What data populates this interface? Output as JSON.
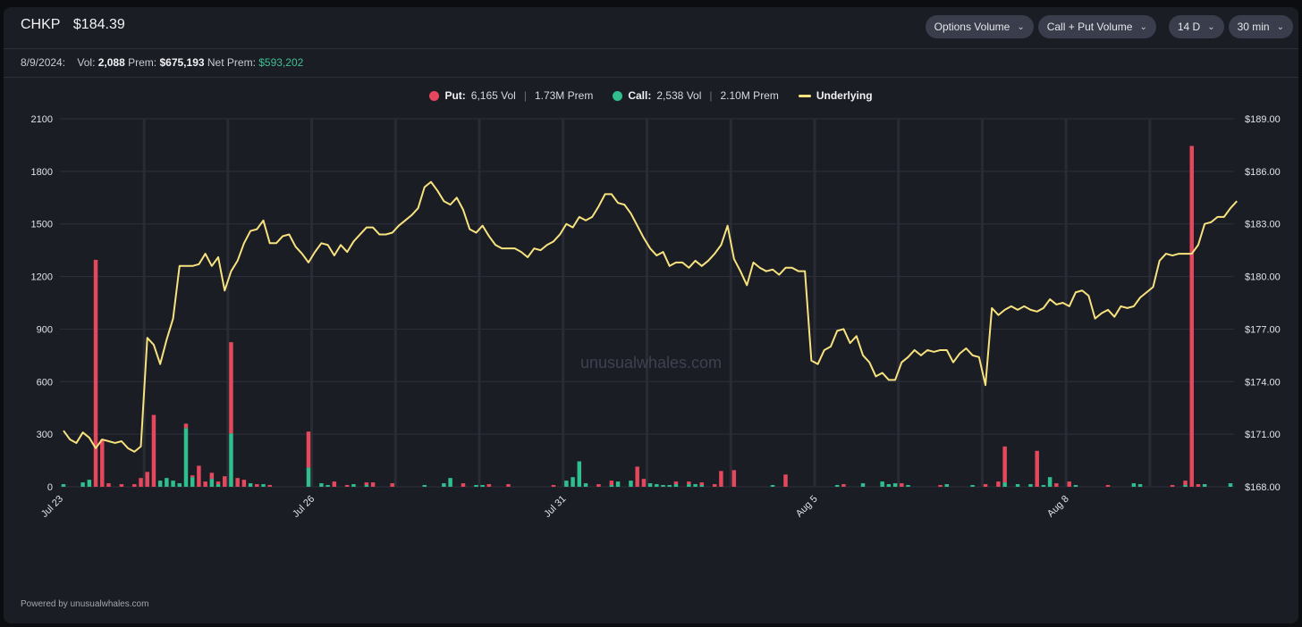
{
  "header": {
    "symbol": "CHKP",
    "price": "$184.39",
    "controls": [
      {
        "label": "Options Volume"
      },
      {
        "label": "Call + Put Volume"
      },
      {
        "label": "14 D"
      },
      {
        "label": "30 min"
      }
    ]
  },
  "stats": {
    "date": "8/9/2024:",
    "vol_label": "Vol:",
    "vol": "2,088",
    "prem_label": "Prem:",
    "prem": "$675,193",
    "net_label": "Net Prem:",
    "net_prem": "$593,202"
  },
  "legend": {
    "put_label": "Put:",
    "put_vol": "6,165 Vol",
    "put_prem": "1.73M Prem",
    "call_label": "Call:",
    "call_vol": "2,538 Vol",
    "call_prem": "2.10M Prem",
    "underlying_label": "Underlying"
  },
  "watermark": "unusualwhales.com",
  "footer": "Powered by unusualwhales.com",
  "colors": {
    "put": "#e5475c",
    "call": "#2fbf8e",
    "underlying": "#f7e27e"
  },
  "chart_data": {
    "type": "bar",
    "y_left": {
      "ticks": [
        0,
        300,
        600,
        900,
        1200,
        1500,
        1800,
        2100
      ],
      "range": [
        0,
        2100
      ]
    },
    "y_right": {
      "ticks": [
        "$168.00",
        "$171.00",
        "$174.00",
        "$177.00",
        "$180.00",
        "$183.00",
        "$186.00",
        "$189.00"
      ],
      "range": [
        168,
        189
      ]
    },
    "x_ticks": [
      {
        "label": "Jul 23",
        "index": 0
      },
      {
        "label": "Jul 26",
        "index": 39
      },
      {
        "label": "Jul 31",
        "index": 78
      },
      {
        "label": "Aug 5",
        "index": 117
      },
      {
        "label": "Aug 8",
        "index": 156
      }
    ],
    "n_slots": 182,
    "day_boundaries": [
      13,
      26,
      39,
      52,
      65,
      78,
      91,
      104,
      117,
      130,
      143,
      156,
      169
    ],
    "series": [
      {
        "name": "Put",
        "bars": [
          [
            5,
            1295
          ],
          [
            6,
            270
          ],
          [
            7,
            20
          ],
          [
            9,
            15
          ],
          [
            11,
            15
          ],
          [
            12,
            50
          ],
          [
            13,
            85
          ],
          [
            14,
            410
          ],
          [
            19,
            25
          ],
          [
            20,
            10
          ],
          [
            21,
            120
          ],
          [
            22,
            30
          ],
          [
            23,
            35
          ],
          [
            24,
            15
          ],
          [
            25,
            60
          ],
          [
            26,
            520
          ],
          [
            27,
            50
          ],
          [
            28,
            40
          ],
          [
            30,
            15
          ],
          [
            32,
            10
          ],
          [
            38,
            205
          ],
          [
            42,
            30
          ],
          [
            44,
            10
          ],
          [
            47,
            15
          ],
          [
            48,
            25
          ],
          [
            51,
            20
          ],
          [
            62,
            20
          ],
          [
            66,
            15
          ],
          [
            69,
            15
          ],
          [
            76,
            10
          ],
          [
            83,
            15
          ],
          [
            85,
            25
          ],
          [
            89,
            115
          ],
          [
            90,
            45
          ],
          [
            95,
            15
          ],
          [
            97,
            15
          ],
          [
            99,
            15
          ],
          [
            101,
            15
          ],
          [
            102,
            90
          ],
          [
            104,
            95
          ],
          [
            112,
            70
          ],
          [
            121,
            15
          ],
          [
            130,
            20
          ],
          [
            136,
            10
          ],
          [
            143,
            15
          ],
          [
            145,
            30
          ],
          [
            146,
            205
          ],
          [
            151,
            205
          ],
          [
            154,
            20
          ],
          [
            156,
            30
          ],
          [
            162,
            10
          ],
          [
            172,
            10
          ],
          [
            174,
            25
          ],
          [
            175,
            1945
          ],
          [
            176,
            15
          ]
        ]
      },
      {
        "name": "Call",
        "bars": [
          [
            0,
            15
          ],
          [
            3,
            25
          ],
          [
            4,
            40
          ],
          [
            15,
            35
          ],
          [
            16,
            50
          ],
          [
            17,
            35
          ],
          [
            18,
            20
          ],
          [
            19,
            335
          ],
          [
            20,
            55
          ],
          [
            23,
            45
          ],
          [
            24,
            15
          ],
          [
            26,
            305
          ],
          [
            29,
            20
          ],
          [
            31,
            15
          ],
          [
            38,
            110
          ],
          [
            40,
            20
          ],
          [
            41,
            10
          ],
          [
            45,
            15
          ],
          [
            47,
            10
          ],
          [
            56,
            10
          ],
          [
            59,
            20
          ],
          [
            60,
            50
          ],
          [
            64,
            10
          ],
          [
            65,
            10
          ],
          [
            78,
            35
          ],
          [
            79,
            55
          ],
          [
            80,
            145
          ],
          [
            81,
            20
          ],
          [
            85,
            10
          ],
          [
            86,
            30
          ],
          [
            88,
            35
          ],
          [
            91,
            20
          ],
          [
            92,
            15
          ],
          [
            93,
            10
          ],
          [
            94,
            10
          ],
          [
            95,
            15
          ],
          [
            97,
            15
          ],
          [
            98,
            15
          ],
          [
            99,
            10
          ],
          [
            110,
            10
          ],
          [
            120,
            10
          ],
          [
            124,
            20
          ],
          [
            127,
            30
          ],
          [
            128,
            15
          ],
          [
            129,
            20
          ],
          [
            131,
            10
          ],
          [
            137,
            15
          ],
          [
            141,
            10
          ],
          [
            146,
            25
          ],
          [
            148,
            15
          ],
          [
            150,
            15
          ],
          [
            152,
            10
          ],
          [
            153,
            55
          ],
          [
            157,
            10
          ],
          [
            166,
            20
          ],
          [
            167,
            15
          ],
          [
            174,
            10
          ],
          [
            177,
            15
          ],
          [
            181,
            20
          ]
        ]
      },
      {
        "name": "Underlying",
        "line": [
          171.2,
          170.7,
          170.5,
          171.1,
          170.8,
          170.2,
          170.7,
          170.6,
          170.5,
          170.6,
          170.2,
          170.0,
          170.3,
          176.5,
          176.1,
          175.0,
          176.4,
          177.6,
          180.6,
          180.6,
          180.6,
          180.7,
          181.3,
          180.6,
          181.1,
          179.2,
          180.3,
          180.9,
          181.9,
          182.6,
          182.7,
          183.2,
          181.9,
          181.9,
          182.3,
          182.4,
          181.7,
          181.3,
          180.8,
          181.4,
          181.9,
          181.8,
          181.2,
          181.8,
          181.4,
          182.0,
          182.4,
          182.8,
          182.8,
          182.4,
          182.4,
          182.5,
          182.9,
          183.2,
          183.5,
          183.9,
          185.1,
          185.4,
          184.9,
          184.3,
          184.1,
          184.5,
          183.8,
          182.7,
          182.5,
          182.9,
          182.3,
          181.8,
          181.6,
          181.6,
          181.6,
          181.4,
          181.1,
          181.6,
          181.5,
          181.8,
          182.0,
          182.4,
          183.0,
          182.8,
          183.4,
          183.2,
          183.4,
          184.0,
          184.7,
          184.7,
          184.2,
          184.1,
          183.6,
          182.9,
          182.2,
          181.6,
          181.2,
          181.4,
          180.6,
          180.8,
          180.8,
          180.5,
          180.9,
          180.6,
          180.9,
          181.3,
          181.8,
          182.9,
          181.0,
          180.3,
          179.5,
          180.8,
          180.5,
          180.3,
          180.4,
          180.1,
          180.5,
          180.5,
          180.3,
          180.3,
          175.2,
          175.0,
          175.8,
          176.0,
          176.9,
          177.0,
          176.2,
          176.6,
          175.5,
          175.1,
          174.3,
          174.5,
          174.1,
          174.1,
          175.1,
          175.4,
          175.8,
          175.5,
          175.8,
          175.7,
          175.8,
          175.8,
          175.1,
          175.6,
          175.9,
          175.5,
          175.4,
          173.8,
          178.2,
          177.8,
          178.1,
          178.3,
          178.1,
          178.3,
          178.1,
          178.0,
          178.2,
          178.7,
          178.4,
          178.5,
          178.3,
          179.1,
          179.2,
          178.9,
          177.6,
          177.9,
          178.1,
          177.7,
          178.3,
          178.2,
          178.3,
          178.8,
          179.1,
          179.4,
          180.9,
          181.3,
          181.2,
          181.3,
          181.3,
          181.3,
          181.8,
          183.0,
          183.1,
          183.4,
          183.4,
          183.9,
          184.3
        ]
      }
    ]
  }
}
